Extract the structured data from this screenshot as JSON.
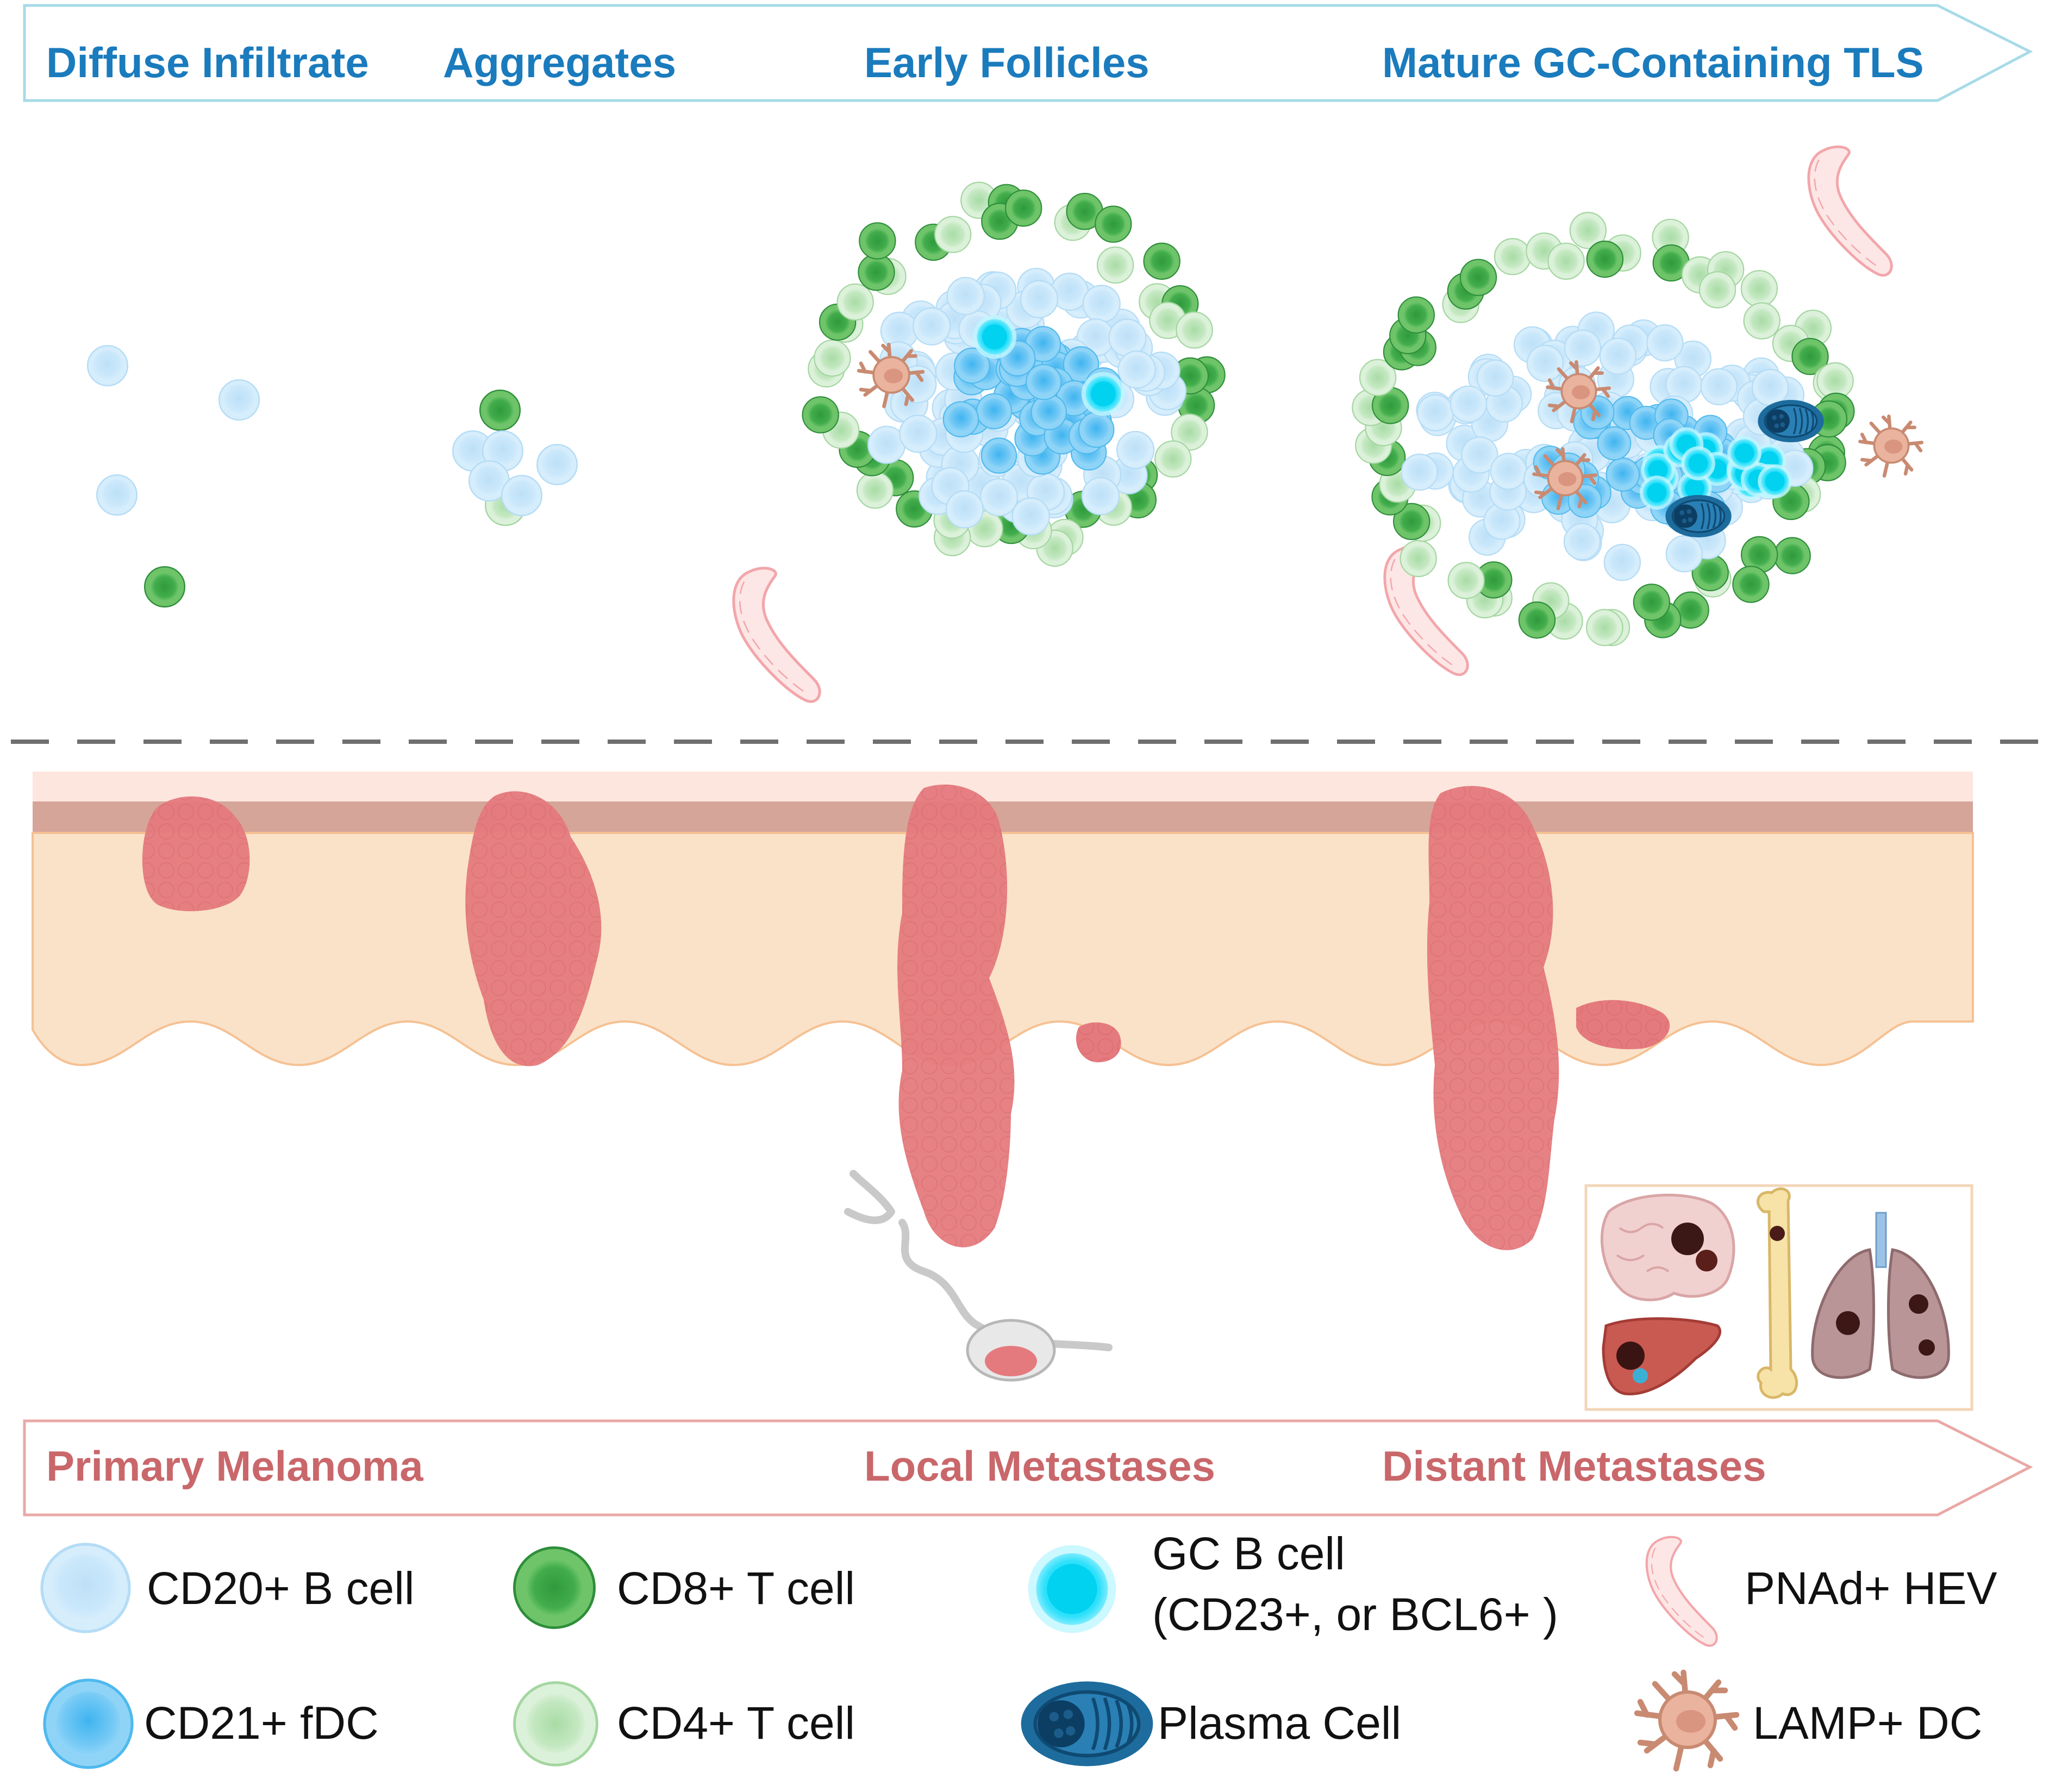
{
  "top_arrow": {
    "stages": [
      "Diffuse Infiltrate",
      "Aggregates",
      "Early Follicles",
      "Mature GC-Containing TLS"
    ]
  },
  "bottom_arrow": {
    "stages": [
      "Primary Melanoma",
      "Local Metastases",
      "Distant Metastases"
    ]
  },
  "legend": {
    "b_cell": "CD20+ B cell",
    "cd8": "CD8+ T cell",
    "gc_line1": "GC B cell",
    "gc_line2": "(CD23+, or BCL6+ )",
    "hev": "PNAd+ HEV",
    "fdc": "CD21+ fDC",
    "cd4": "CD4+ T cell",
    "plasma": "Plasma Cell",
    "dc": "LAMP+  DC"
  },
  "organs": [
    "brain-icon",
    "bone-icon",
    "lung-icon",
    "liver-icon"
  ],
  "colors": {
    "stage_blue": "#1a7bbd",
    "clinical_red": "#c9676b",
    "skin": "#fae2c8",
    "tumor": "#e57c7f",
    "b_cell": "#bfe3fa",
    "fdc": "#61c5f4",
    "gc_b_cell": "#15d4f2",
    "cd8": "#3da447",
    "cd4": "#c2e6c0"
  }
}
